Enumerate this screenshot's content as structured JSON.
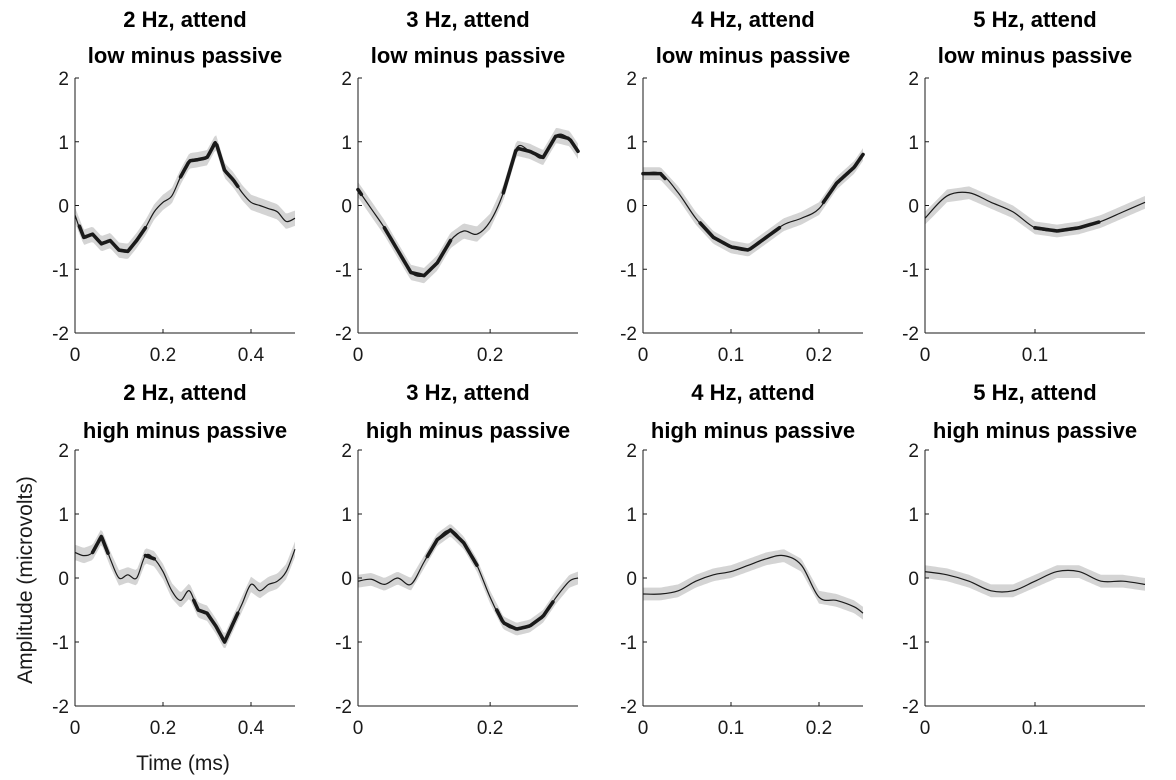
{
  "figure": {
    "ylabel": "Amplitude (microvolts)",
    "xlabel": "Time (ms)"
  },
  "colors": {
    "line": "#1a1a1a",
    "band": "#d4d4d4",
    "axis": "#1a1a1a",
    "background": "#ffffff"
  },
  "chart_data": [
    {
      "type": "line",
      "title": [
        "2 Hz, attend",
        "low minus passive"
      ],
      "xlim": [
        0,
        0.5
      ],
      "ylim": [
        -2,
        2
      ],
      "xticks": [
        "0",
        "0.2",
        "0.4"
      ],
      "xtick_values": [
        0,
        0.2,
        0.4
      ],
      "yticks": [
        "-2",
        "-1",
        "0",
        "1",
        "2"
      ],
      "x": [
        0,
        0.02,
        0.04,
        0.06,
        0.08,
        0.1,
        0.12,
        0.14,
        0.16,
        0.18,
        0.2,
        0.22,
        0.24,
        0.26,
        0.28,
        0.3,
        0.32,
        0.34,
        0.36,
        0.38,
        0.4,
        0.42,
        0.44,
        0.46,
        0.48,
        0.5
      ],
      "y": [
        -0.15,
        -0.5,
        -0.45,
        -0.6,
        -0.55,
        -0.7,
        -0.72,
        -0.55,
        -0.35,
        -0.1,
        0.05,
        0.15,
        0.45,
        0.7,
        0.72,
        0.75,
        1.0,
        0.55,
        0.4,
        0.2,
        0.05,
        0.0,
        -0.05,
        -0.1,
        -0.25,
        -0.2
      ],
      "band": 0.12,
      "significant_ranges": [
        [
          0.01,
          0.16
        ],
        [
          0.24,
          0.37
        ]
      ]
    },
    {
      "type": "line",
      "title": [
        "3 Hz, attend",
        "low minus passive"
      ],
      "xlim": [
        0,
        0.333
      ],
      "ylim": [
        -2,
        2
      ],
      "xticks": [
        "0",
        "0.2"
      ],
      "xtick_values": [
        0,
        0.2
      ],
      "yticks": [
        "-2",
        "-1",
        "0",
        "1",
        "2"
      ],
      "x": [
        0,
        0.02,
        0.04,
        0.06,
        0.08,
        0.1,
        0.12,
        0.14,
        0.16,
        0.18,
        0.2,
        0.22,
        0.24,
        0.26,
        0.28,
        0.3,
        0.32,
        0.333
      ],
      "y": [
        0.25,
        -0.05,
        -0.35,
        -0.7,
        -1.05,
        -1.1,
        -0.9,
        -0.55,
        -0.4,
        -0.45,
        -0.25,
        0.2,
        0.9,
        0.85,
        0.75,
        1.1,
        1.05,
        0.85
      ],
      "band": 0.12,
      "significant_ranges": [
        [
          0.0,
          0.005
        ],
        [
          0.04,
          0.14
        ],
        [
          0.22,
          0.333
        ]
      ]
    },
    {
      "type": "line",
      "title": [
        "4 Hz, attend",
        "low minus passive"
      ],
      "xlim": [
        0,
        0.25
      ],
      "ylim": [
        -2,
        2
      ],
      "xticks": [
        "0",
        "0.1",
        "0.2"
      ],
      "xtick_values": [
        0,
        0.1,
        0.2
      ],
      "yticks": [
        "-2",
        "-1",
        "0",
        "1",
        "2"
      ],
      "x": [
        0,
        0.02,
        0.04,
        0.06,
        0.08,
        0.1,
        0.12,
        0.14,
        0.16,
        0.18,
        0.2,
        0.22,
        0.24,
        0.25
      ],
      "y": [
        0.5,
        0.5,
        0.2,
        -0.2,
        -0.5,
        -0.65,
        -0.7,
        -0.5,
        -0.3,
        -0.2,
        -0.05,
        0.35,
        0.6,
        0.8
      ],
      "band": 0.1,
      "significant_ranges": [
        [
          0.0,
          0.025
        ],
        [
          0.065,
          0.155
        ],
        [
          0.205,
          0.25
        ]
      ]
    },
    {
      "type": "line",
      "title": [
        "5 Hz, attend",
        "low minus passive"
      ],
      "xlim": [
        0,
        0.2
      ],
      "ylim": [
        -2,
        2
      ],
      "xticks": [
        "0",
        "0.1"
      ],
      "xtick_values": [
        0,
        0.1
      ],
      "yticks": [
        "-2",
        "-1",
        "0",
        "1",
        "2"
      ],
      "x": [
        0,
        0.02,
        0.04,
        0.06,
        0.08,
        0.1,
        0.12,
        0.14,
        0.16,
        0.18,
        0.2
      ],
      "y": [
        -0.2,
        0.15,
        0.2,
        0.05,
        -0.1,
        -0.35,
        -0.4,
        -0.35,
        -0.25,
        -0.1,
        0.05
      ],
      "band": 0.1,
      "significant_ranges": [
        [
          0.1,
          0.158
        ]
      ]
    },
    {
      "type": "line",
      "title": [
        "2 Hz, attend",
        "high minus passive"
      ],
      "xlim": [
        0,
        0.5
      ],
      "ylim": [
        -2,
        2
      ],
      "xticks": [
        "0",
        "0.2",
        "0.4"
      ],
      "xtick_values": [
        0,
        0.2,
        0.4
      ],
      "yticks": [
        "-2",
        "-1",
        "0",
        "1",
        "2"
      ],
      "x": [
        0,
        0.02,
        0.04,
        0.06,
        0.08,
        0.1,
        0.12,
        0.14,
        0.16,
        0.18,
        0.2,
        0.22,
        0.24,
        0.26,
        0.28,
        0.3,
        0.32,
        0.34,
        0.36,
        0.38,
        0.4,
        0.42,
        0.44,
        0.46,
        0.48,
        0.5
      ],
      "y": [
        0.4,
        0.35,
        0.4,
        0.65,
        0.3,
        0.0,
        0.05,
        0.0,
        0.35,
        0.3,
        0.1,
        -0.2,
        -0.35,
        -0.2,
        -0.5,
        -0.55,
        -0.75,
        -1.0,
        -0.7,
        -0.4,
        -0.1,
        -0.2,
        -0.1,
        -0.05,
        0.1,
        0.45
      ],
      "band": 0.12,
      "significant_ranges": [
        [
          0.04,
          0.075
        ],
        [
          0.16,
          0.18
        ],
        [
          0.27,
          0.37
        ]
      ]
    },
    {
      "type": "line",
      "title": [
        "3 Hz, attend",
        "high minus passive"
      ],
      "xlim": [
        0,
        0.333
      ],
      "ylim": [
        -2,
        2
      ],
      "xticks": [
        "0",
        "0.2"
      ],
      "xtick_values": [
        0,
        0.2
      ],
      "yticks": [
        "-2",
        "-1",
        "0",
        "1",
        "2"
      ],
      "x": [
        0,
        0.02,
        0.04,
        0.06,
        0.08,
        0.1,
        0.12,
        0.14,
        0.16,
        0.18,
        0.2,
        0.22,
        0.24,
        0.26,
        0.28,
        0.3,
        0.32,
        0.333
      ],
      "y": [
        -0.05,
        -0.02,
        -0.1,
        0.0,
        -0.1,
        0.25,
        0.6,
        0.75,
        0.55,
        0.2,
        -0.3,
        -0.7,
        -0.8,
        -0.75,
        -0.6,
        -0.3,
        -0.05,
        0.0
      ],
      "band": 0.1,
      "significant_ranges": [
        [
          0.105,
          0.18
        ],
        [
          0.21,
          0.295
        ]
      ]
    },
    {
      "type": "line",
      "title": [
        "4 Hz, attend",
        "high minus passive"
      ],
      "xlim": [
        0,
        0.25
      ],
      "ylim": [
        -2,
        2
      ],
      "xticks": [
        "0",
        "0.1",
        "0.2"
      ],
      "xtick_values": [
        0,
        0.1,
        0.2
      ],
      "yticks": [
        "-2",
        "-1",
        "0",
        "1",
        "2"
      ],
      "x": [
        0,
        0.02,
        0.04,
        0.06,
        0.08,
        0.1,
        0.12,
        0.14,
        0.16,
        0.18,
        0.2,
        0.22,
        0.24,
        0.25
      ],
      "y": [
        -0.25,
        -0.25,
        -0.2,
        -0.05,
        0.05,
        0.1,
        0.2,
        0.3,
        0.35,
        0.2,
        -0.3,
        -0.35,
        -0.45,
        -0.55
      ],
      "band": 0.1,
      "significant_ranges": []
    },
    {
      "type": "line",
      "title": [
        "5 Hz, attend",
        "high minus passive"
      ],
      "xlim": [
        0,
        0.2
      ],
      "ylim": [
        -2,
        2
      ],
      "xticks": [
        "0",
        "0.1"
      ],
      "xtick_values": [
        0,
        0.1
      ],
      "yticks": [
        "-2",
        "-1",
        "0",
        "1",
        "2"
      ],
      "x": [
        0,
        0.02,
        0.04,
        0.06,
        0.08,
        0.1,
        0.12,
        0.14,
        0.16,
        0.18,
        0.2
      ],
      "y": [
        0.1,
        0.05,
        -0.05,
        -0.2,
        -0.2,
        -0.05,
        0.1,
        0.1,
        -0.05,
        -0.05,
        -0.1
      ],
      "band": 0.1,
      "significant_ranges": []
    }
  ]
}
